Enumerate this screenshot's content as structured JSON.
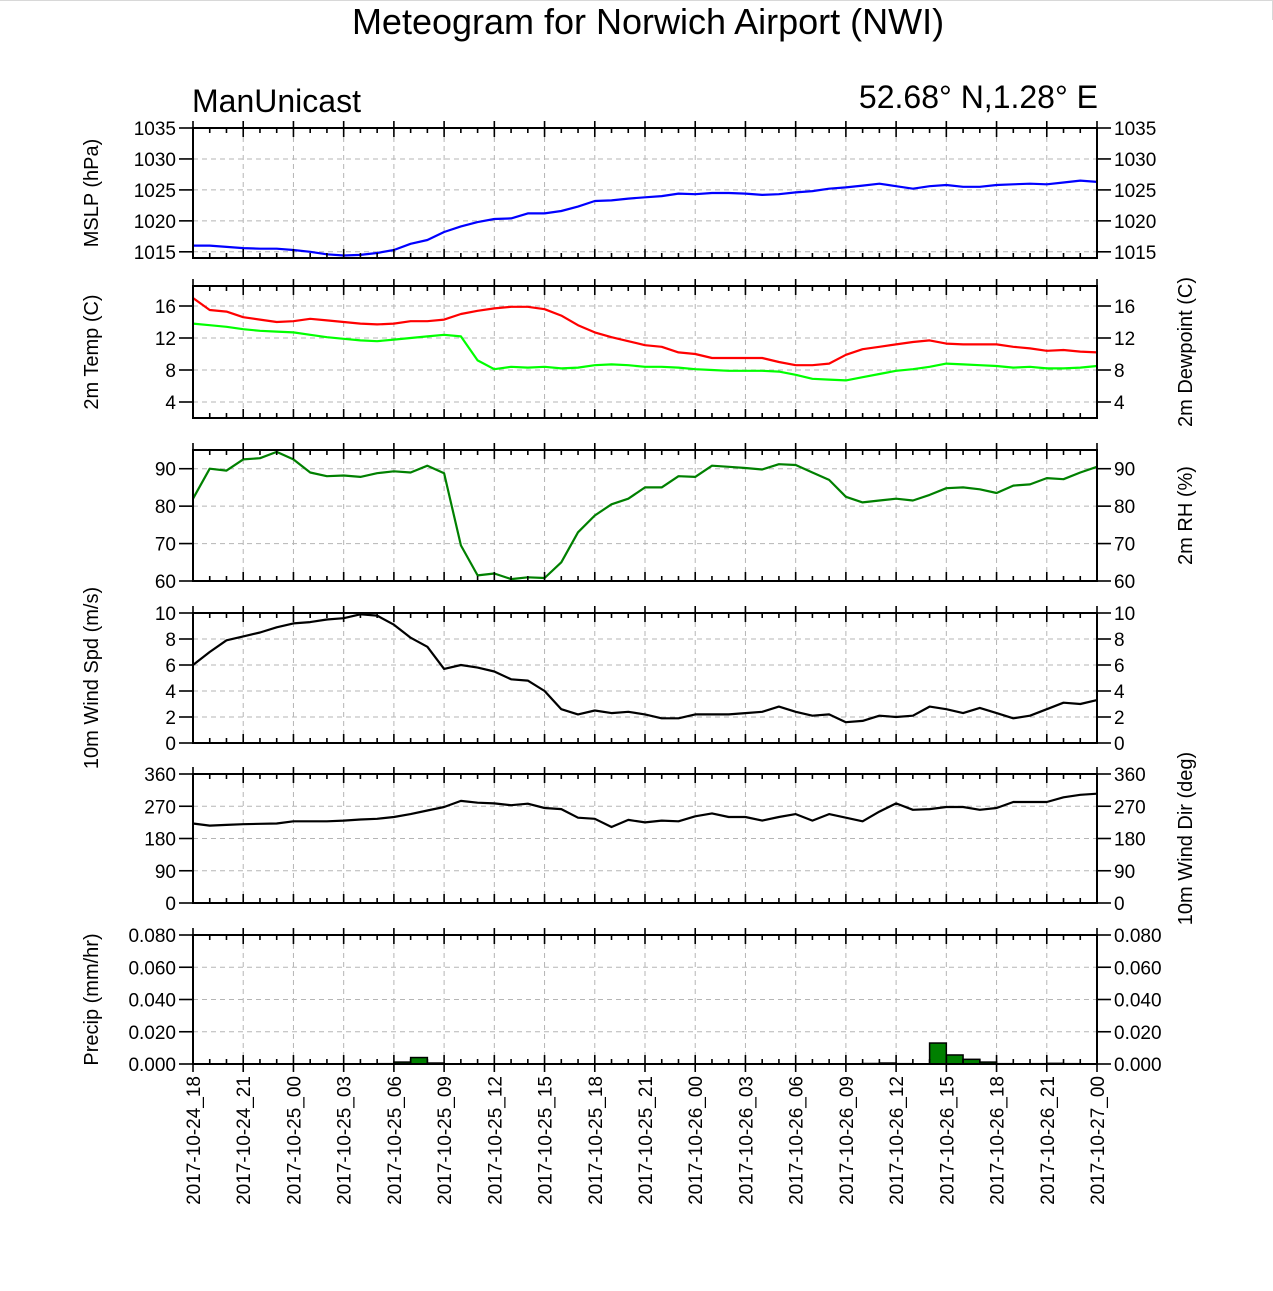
{
  "chart_data": {
    "type": "line",
    "title": "Meteogram for Norwich Airport (NWI)",
    "model": "ManUnicast",
    "location": "52.68° N,1.28° E",
    "x_tick_labels": [
      "2017-10-24_18",
      "2017-10-24_21",
      "2017-10-25_00",
      "2017-10-25_03",
      "2017-10-25_06",
      "2017-10-25_09",
      "2017-10-25_12",
      "2017-10-25_15",
      "2017-10-25_18",
      "2017-10-25_21",
      "2017-10-26_00",
      "2017-10-26_03",
      "2017-10-26_06",
      "2017-10-26_09",
      "2017-10-26_12",
      "2017-10-26_15",
      "2017-10-26_18",
      "2017-10-26_21",
      "2017-10-27_00"
    ],
    "x_hours": [
      0,
      1,
      2,
      3,
      4,
      5,
      6,
      7,
      8,
      9,
      10,
      11,
      12,
      13,
      14,
      15,
      16,
      17,
      18,
      19,
      20,
      21,
      22,
      23,
      24,
      25,
      26,
      27,
      28,
      29,
      30,
      31,
      32,
      33,
      34,
      35,
      36,
      37,
      38,
      39,
      40,
      41,
      42,
      43,
      44,
      45,
      46,
      47,
      48,
      49,
      50,
      51,
      52,
      53,
      54
    ],
    "x_range_hours": [
      0,
      54
    ],
    "grid": true,
    "panels": [
      {
        "id": "mslp",
        "left_label": "MSLP (hPa)",
        "right_label": "",
        "ylim": [
          1014,
          1035
        ],
        "left_ticks": [
          "1015",
          "1020",
          "1025",
          "1030",
          "1035"
        ],
        "right_ticks": [
          "1015",
          "1020",
          "1025",
          "1030",
          "1035"
        ],
        "kind": "line",
        "series": [
          {
            "name": "MSLP",
            "color": "#0000ff",
            "values": [
              1016.0,
              1016.0,
              1015.8,
              1015.6,
              1015.5,
              1015.5,
              1015.3,
              1015.0,
              1014.6,
              1014.4,
              1014.5,
              1014.8,
              1015.3,
              1016.3,
              1016.9,
              1018.2,
              1019.1,
              1019.8,
              1020.3,
              1020.4,
              1021.2,
              1021.2,
              1021.6,
              1022.3,
              1023.2,
              1023.3,
              1023.6,
              1023.8,
              1024.0,
              1024.4,
              1024.3,
              1024.5,
              1024.5,
              1024.4,
              1024.2,
              1024.3,
              1024.6,
              1024.8,
              1025.2,
              1025.4,
              1025.7,
              1026.0,
              1025.6,
              1025.2,
              1025.6,
              1025.8,
              1025.5,
              1025.5,
              1025.8,
              1025.9,
              1026.0,
              1025.9,
              1026.2,
              1026.5,
              1026.3
            ]
          }
        ]
      },
      {
        "id": "temp",
        "left_label": "2m Temp (C)",
        "right_label": "2m Dewpoint (C)",
        "ylim": [
          2,
          18.5
        ],
        "left_ticks": [
          "4",
          "8",
          "12",
          "16"
        ],
        "right_ticks": [
          "4",
          "8",
          "12",
          "16"
        ],
        "kind": "line",
        "series": [
          {
            "name": "2m Temp",
            "color": "#ff0000",
            "values": [
              17.0,
              15.5,
              15.3,
              14.6,
              14.3,
              14.0,
              14.1,
              14.4,
              14.2,
              14.0,
              13.8,
              13.7,
              13.8,
              14.1,
              14.1,
              14.3,
              15.0,
              15.4,
              15.7,
              15.9,
              15.9,
              15.6,
              14.8,
              13.6,
              12.7,
              12.1,
              11.6,
              11.1,
              10.9,
              10.2,
              10.0,
              9.5,
              9.5,
              9.5,
              9.5,
              9.0,
              8.6,
              8.6,
              8.8,
              9.9,
              10.6,
              10.9,
              11.2,
              11.5,
              11.7,
              11.3,
              11.2,
              11.2,
              11.2,
              10.9,
              10.7,
              10.4,
              10.5,
              10.3,
              10.2
            ]
          },
          {
            "name": "2m Dewpoint",
            "color": "#00ff00",
            "values": [
              13.8,
              13.6,
              13.4,
              13.1,
              12.9,
              12.8,
              12.7,
              12.4,
              12.1,
              11.9,
              11.7,
              11.6,
              11.8,
              12.0,
              12.2,
              12.4,
              12.2,
              9.2,
              8.1,
              8.4,
              8.3,
              8.4,
              8.2,
              8.3,
              8.6,
              8.7,
              8.6,
              8.4,
              8.4,
              8.3,
              8.1,
              8.0,
              7.9,
              7.9,
              7.9,
              7.8,
              7.4,
              6.9,
              6.8,
              6.7,
              7.1,
              7.5,
              7.9,
              8.1,
              8.4,
              8.8,
              8.7,
              8.6,
              8.5,
              8.3,
              8.4,
              8.2,
              8.2,
              8.3,
              8.5
            ]
          }
        ]
      },
      {
        "id": "rh",
        "left_label": "",
        "right_label": "2m RH (%)",
        "ylim": [
          60,
          95
        ],
        "left_ticks": [
          "60",
          "70",
          "80",
          "90"
        ],
        "right_ticks": [
          "60",
          "70",
          "80",
          "90"
        ],
        "kind": "line",
        "series": [
          {
            "name": "2m RH",
            "color": "#008000",
            "values": [
              82.0,
              90.0,
              89.5,
              92.5,
              92.8,
              94.5,
              92.5,
              89.0,
              88.0,
              88.2,
              87.8,
              88.8,
              89.3,
              89.0,
              90.8,
              88.8,
              69.5,
              61.5,
              62.0,
              60.5,
              61.0,
              60.8,
              65.0,
              73.0,
              77.5,
              80.5,
              82.0,
              85.0,
              85.0,
              88.0,
              87.8,
              90.8,
              90.5,
              90.2,
              89.8,
              91.2,
              91.0,
              89.0,
              87.0,
              82.5,
              81.0,
              81.5,
              82.0,
              81.5,
              83.0,
              84.8,
              85.0,
              84.5,
              83.5,
              85.5,
              85.8,
              87.5,
              87.2,
              89.0,
              90.5
            ]
          }
        ]
      },
      {
        "id": "wind_speed",
        "left_label": "10m Wind Spd (m/s)",
        "right_label": "",
        "ylim": [
          0,
          10
        ],
        "left_ticks": [
          "0",
          "2",
          "4",
          "6",
          "8",
          "10"
        ],
        "right_ticks": [
          "0",
          "2",
          "4",
          "6",
          "8",
          "10"
        ],
        "kind": "line",
        "series": [
          {
            "name": "10m Wind Spd",
            "color": "#000000",
            "values": [
              6.0,
              7.0,
              7.9,
              8.2,
              8.5,
              8.9,
              9.2,
              9.3,
              9.5,
              9.6,
              9.9,
              9.8,
              9.1,
              8.1,
              7.4,
              5.7,
              6.0,
              5.8,
              5.5,
              4.9,
              4.8,
              4.0,
              2.6,
              2.2,
              2.5,
              2.3,
              2.4,
              2.2,
              1.9,
              1.9,
              2.2,
              2.2,
              2.2,
              2.3,
              2.4,
              2.8,
              2.4,
              2.1,
              2.2,
              1.6,
              1.7,
              2.1,
              2.0,
              2.1,
              2.8,
              2.6,
              2.3,
              2.7,
              2.3,
              1.9,
              2.1,
              2.6,
              3.1,
              3.0,
              3.3
            ]
          }
        ]
      },
      {
        "id": "wind_dir",
        "left_label": "",
        "right_label": "10m Wind Dir (deg)",
        "ylim": [
          0,
          360
        ],
        "left_ticks": [
          "0",
          "90",
          "180",
          "270",
          "360"
        ],
        "right_ticks": [
          "0",
          "90",
          "180",
          "270",
          "360"
        ],
        "kind": "line",
        "series": [
          {
            "name": "10m Wind Dir",
            "color": "#000000",
            "values": [
              222,
              216,
              218,
              220,
              221,
              222,
              228,
              228,
              228,
              230,
              233,
              235,
              240,
              248,
              258,
              268,
              285,
              280,
              278,
              273,
              277,
              265,
              262,
              238,
              235,
              212,
              232,
              225,
              230,
              228,
              242,
              250,
              240,
              240,
              230,
              240,
              248,
              230,
              248,
              238,
              228,
              255,
              278,
              260,
              262,
              268,
              268,
              260,
              265,
              282,
              282,
              282,
              295,
              302,
              305
            ]
          }
        ]
      },
      {
        "id": "precip",
        "left_label": "Precip (mm/hr)",
        "right_label": "",
        "ylim": [
          0,
          0.08
        ],
        "left_ticks": [
          "0.000",
          "0.020",
          "0.040",
          "0.060",
          "0.080"
        ],
        "right_ticks": [
          "0.000",
          "0.020",
          "0.040",
          "0.060",
          "0.080"
        ],
        "kind": "bar",
        "series": [
          {
            "name": "Precip",
            "color": "#008000",
            "values": [
              0,
              0,
              0,
              0,
              0,
              0,
              0,
              0,
              0,
              0,
              0,
              0.0002,
              0.0012,
              0.004,
              0.0006,
              0,
              0,
              0,
              0,
              0,
              0,
              0,
              0,
              0,
              0,
              0,
              0,
              0,
              0,
              0,
              0,
              0,
              0,
              0,
              0,
              0,
              0,
              0,
              0,
              0,
              0.0003,
              0.0006,
              0.0002,
              0,
              0.013,
              0.0056,
              0.0029,
              0.0012,
              0.0002,
              0,
              0.0002,
              0.0004,
              0.0002,
              0,
              0
            ]
          }
        ]
      }
    ]
  }
}
